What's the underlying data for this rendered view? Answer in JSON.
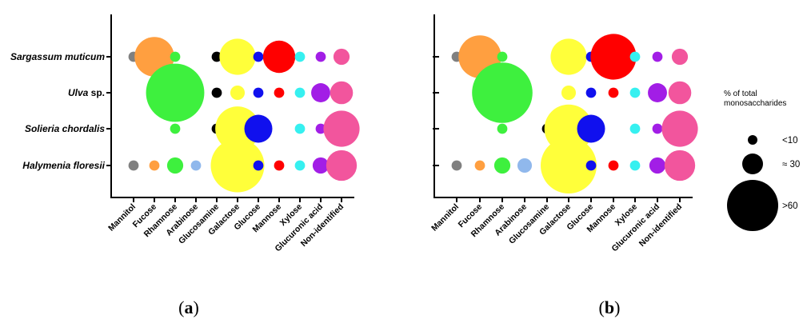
{
  "chart_data": [
    {
      "type": "bubble",
      "panel_label": "a",
      "categories": [
        "Mannitol",
        "Fucose",
        "Rhamnose",
        "Arabinose",
        "Glucosamine",
        "Galactose",
        "Glucose",
        "Mannose",
        "Xylose",
        "Glucuronic acid",
        "Non-identified"
      ],
      "species": [
        {
          "genus": "Sargassum muticum",
          "rest": ""
        },
        {
          "genus": "Ulva",
          "rest": " sp."
        },
        {
          "genus": "Solieria chordalis",
          "rest": ""
        },
        {
          "genus": "Halymenia floresii",
          "rest": ""
        }
      ],
      "values": [
        [
          2,
          30,
          2,
          0,
          2,
          25,
          2,
          20,
          2,
          2,
          5
        ],
        [
          0,
          0,
          65,
          0,
          2,
          4,
          2,
          2,
          2,
          7,
          10
        ],
        [
          0,
          0,
          2,
          0,
          2,
          38,
          15,
          0,
          2,
          2,
          25
        ],
        [
          2,
          2,
          5,
          2,
          2,
          55,
          2,
          2,
          2,
          5,
          18
        ]
      ]
    },
    {
      "type": "bubble",
      "panel_label": "b",
      "categories": [
        "Mannitol",
        "Fucose",
        "Rhamnose",
        "Arabinose",
        "Glucosamine",
        "Galactose",
        "Glucose",
        "Mannose",
        "Xylose",
        "Glucuronic acid",
        "Non-identified"
      ],
      "values": [
        [
          2,
          35,
          2,
          0,
          0,
          25,
          2,
          40,
          2,
          2,
          5
        ],
        [
          0,
          0,
          70,
          0,
          0,
          4,
          2,
          2,
          2,
          7,
          10
        ],
        [
          0,
          0,
          2,
          0,
          2,
          45,
          15,
          0,
          2,
          2,
          25
        ],
        [
          2,
          2,
          5,
          4,
          2,
          60,
          2,
          2,
          2,
          5,
          18
        ]
      ]
    }
  ],
  "category_colors": [
    "#808080",
    "#ff9f40",
    "#3ef03e",
    "#90b8ec",
    "#000000",
    "#ffff3a",
    "#1010ee",
    "#ff0000",
    "#36f0f0",
    "#a21ee6",
    "#f2559d"
  ],
  "legend": {
    "title_line1": "% of total",
    "title_line2": "monosaccharides",
    "items": [
      {
        "label": "<10",
        "value": 4
      },
      {
        "label": "≈ 30",
        "value": 20
      },
      {
        "label": ">60",
        "value": 60
      }
    ]
  }
}
